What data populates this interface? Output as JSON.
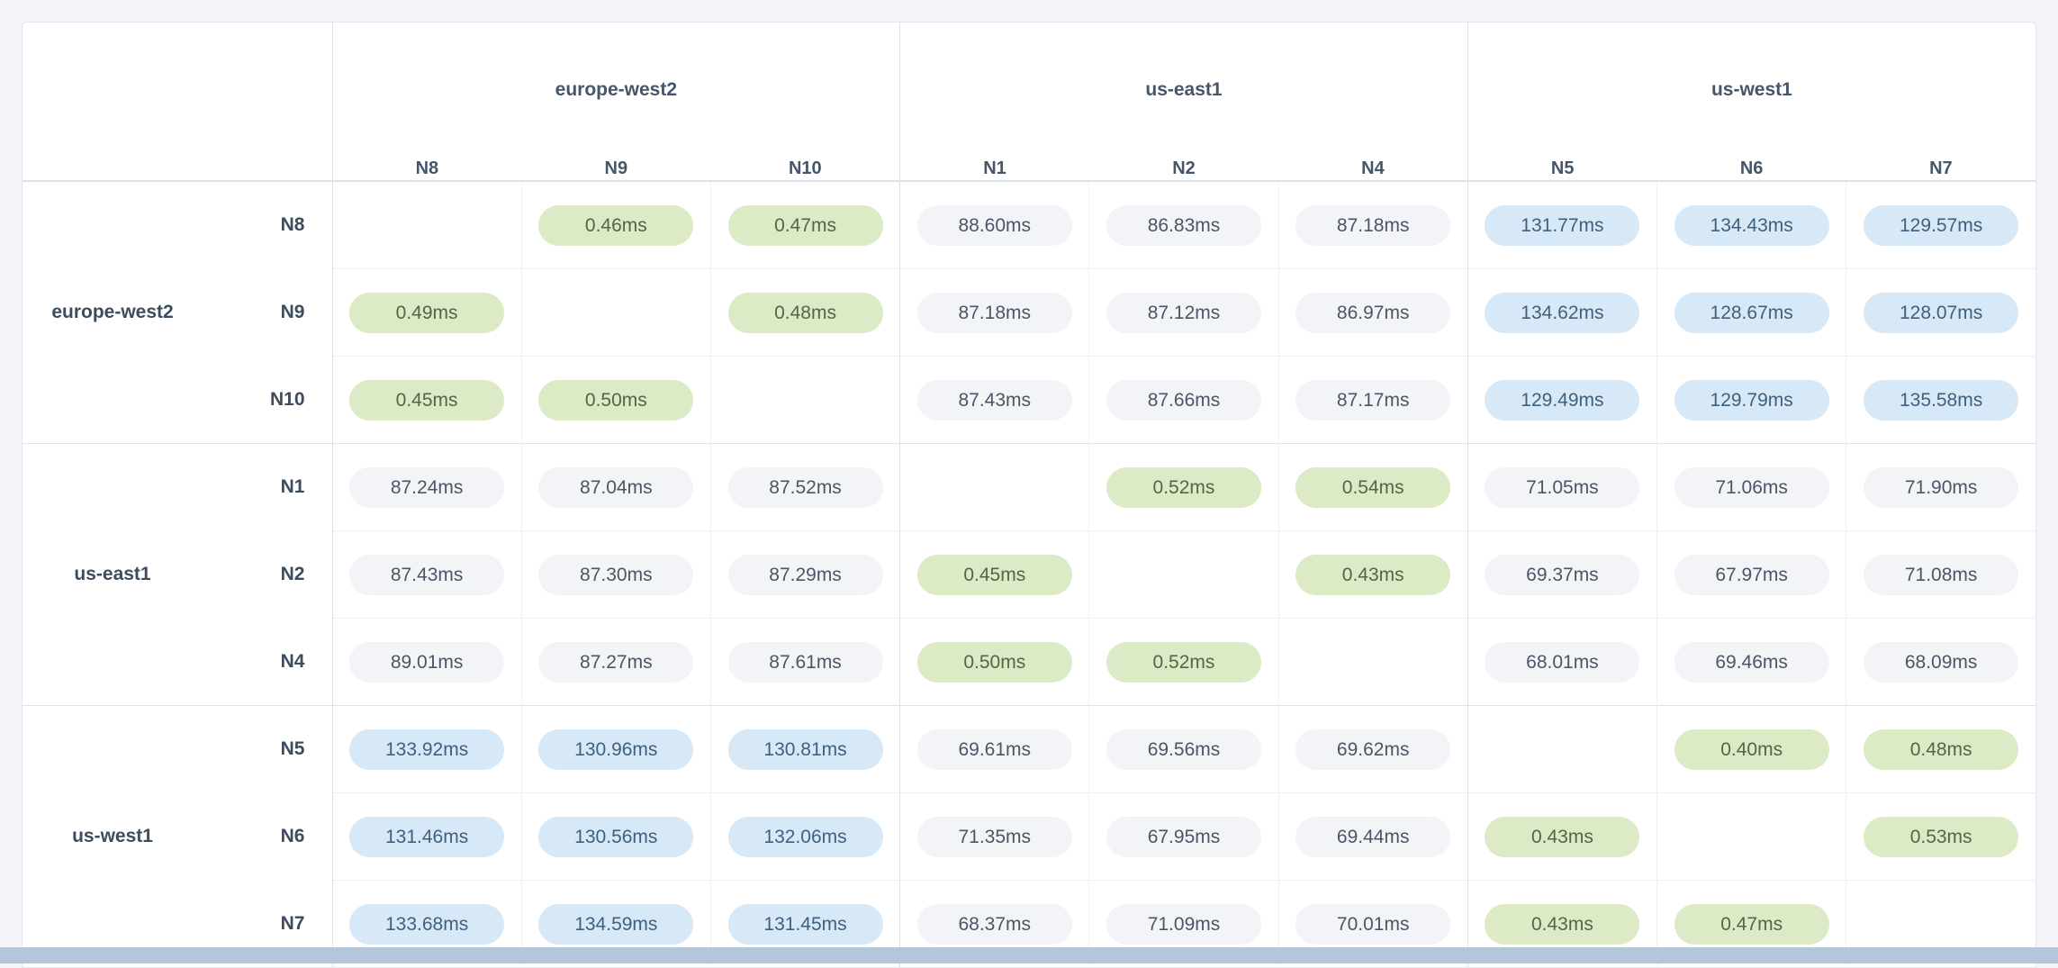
{
  "colors": {
    "page_bg": "#f2f4f7",
    "card_bg": "#ffffff",
    "card_border": "#e3e6eb",
    "grid_light": "#eef0f3",
    "grid_strong": "#dee2e7",
    "header_text": "#46566a",
    "label_text": "#3d4c5e",
    "pill_gray_bg": "#f3f4f8",
    "pill_gray_text": "#4a5666",
    "pill_green_bg": "#dcebc5",
    "pill_green_text": "#55644a",
    "pill_blue_bg": "#d7e8f7",
    "pill_blue_text": "#40607e",
    "scrollbar": "#b6c6da"
  },
  "chart_data": {
    "type": "heatmap",
    "title": "",
    "unit": "ms",
    "layout_hints": {
      "value_color_coding": {
        "green": "values below 1ms (intra-region)",
        "gray": "values between 1ms and 100ms",
        "blue": "values above 100ms"
      },
      "diagonal": "empty (node to itself)"
    },
    "col_groups": [
      {
        "region": "europe-west2",
        "nodes": [
          "N8",
          "N9",
          "N10"
        ]
      },
      {
        "region": "us-east1",
        "nodes": [
          "N1",
          "N2",
          "N4"
        ]
      },
      {
        "region": "us-west1",
        "nodes": [
          "N5",
          "N6",
          "N7"
        ]
      }
    ],
    "row_groups": [
      {
        "region": "europe-west2",
        "nodes": [
          "N8",
          "N9",
          "N10"
        ]
      },
      {
        "region": "us-east1",
        "nodes": [
          "N1",
          "N2",
          "N4"
        ]
      },
      {
        "region": "us-west1",
        "nodes": [
          "N5",
          "N6",
          "N7"
        ]
      }
    ],
    "rows": [
      {
        "region": "europe-west2",
        "node": "N8",
        "values": [
          null,
          "0.46ms",
          "0.47ms",
          "88.60ms",
          "86.83ms",
          "87.18ms",
          "131.77ms",
          "134.43ms",
          "129.57ms"
        ]
      },
      {
        "region": "europe-west2",
        "node": "N9",
        "values": [
          "0.49ms",
          null,
          "0.48ms",
          "87.18ms",
          "87.12ms",
          "86.97ms",
          "134.62ms",
          "128.67ms",
          "128.07ms"
        ]
      },
      {
        "region": "europe-west2",
        "node": "N10",
        "values": [
          "0.45ms",
          "0.50ms",
          null,
          "87.43ms",
          "87.66ms",
          "87.17ms",
          "129.49ms",
          "129.79ms",
          "135.58ms"
        ]
      },
      {
        "region": "us-east1",
        "node": "N1",
        "values": [
          "87.24ms",
          "87.04ms",
          "87.52ms",
          null,
          "0.52ms",
          "0.54ms",
          "71.05ms",
          "71.06ms",
          "71.90ms"
        ]
      },
      {
        "region": "us-east1",
        "node": "N2",
        "values": [
          "87.43ms",
          "87.30ms",
          "87.29ms",
          "0.45ms",
          null,
          "0.43ms",
          "69.37ms",
          "67.97ms",
          "71.08ms"
        ]
      },
      {
        "region": "us-east1",
        "node": "N4",
        "values": [
          "89.01ms",
          "87.27ms",
          "87.61ms",
          "0.50ms",
          "0.52ms",
          null,
          "68.01ms",
          "69.46ms",
          "68.09ms"
        ]
      },
      {
        "region": "us-west1",
        "node": "N5",
        "values": [
          "133.92ms",
          "130.96ms",
          "130.81ms",
          "69.61ms",
          "69.56ms",
          "69.62ms",
          null,
          "0.40ms",
          "0.48ms"
        ]
      },
      {
        "region": "us-west1",
        "node": "N6",
        "values": [
          "131.46ms",
          "130.56ms",
          "132.06ms",
          "71.35ms",
          "67.95ms",
          "69.44ms",
          "0.43ms",
          null,
          "0.53ms"
        ]
      },
      {
        "region": "us-west1",
        "node": "N7",
        "values": [
          "133.68ms",
          "134.59ms",
          "131.45ms",
          "68.37ms",
          "71.09ms",
          "70.01ms",
          "0.43ms",
          "0.47ms",
          null
        ]
      }
    ]
  }
}
